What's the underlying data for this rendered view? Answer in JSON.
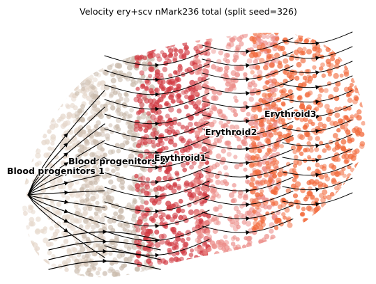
{
  "chart_data": {
    "type": "scatter",
    "title": "Velocity ery+scv nMark236 total (split seed=326)",
    "xlabel": "",
    "ylabel": "",
    "axes_visible": false,
    "grid": false,
    "legend": "none",
    "overlay": "velocity streamlines with arrowheads",
    "colors": {
      "Blood progenitors 1": "#e6d8cc",
      "Blood progenitors 2": "#cbbcae",
      "Erythroid1": "#d23c44",
      "Erythroid2": "#ec8e8a",
      "Erythroid3": "#f26a3c",
      "streamline": "#000000"
    },
    "clusters": [
      {
        "name": "Blood progenitors 1",
        "label": "Blood progenitors 1"
      },
      {
        "name": "Blood progenitors 2",
        "label": "Blood progenitors 2"
      },
      {
        "name": "Erythroid1",
        "label": "Erythroid1"
      },
      {
        "name": "Erythroid2",
        "label": "Erythroid2"
      },
      {
        "name": "Erythroid3",
        "label": "Erythroid3"
      }
    ]
  }
}
